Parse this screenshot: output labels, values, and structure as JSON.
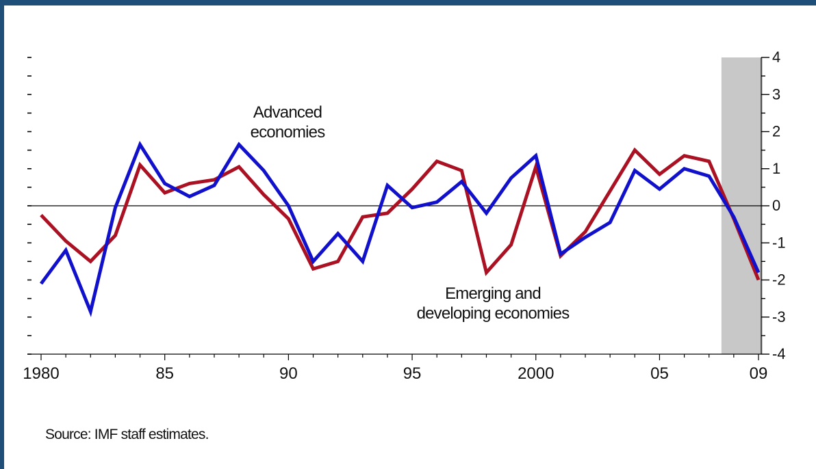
{
  "chart_data": {
    "type": "line",
    "x": [
      1980,
      1981,
      1982,
      1983,
      1984,
      1985,
      1986,
      1987,
      1988,
      1989,
      1990,
      1991,
      1992,
      1993,
      1994,
      1995,
      1996,
      1997,
      1998,
      1999,
      2000,
      2001,
      2002,
      2003,
      2004,
      2005,
      2006,
      2007,
      2008,
      2009
    ],
    "x_tick_values": [
      1980,
      1985,
      1990,
      1995,
      2000,
      2005,
      2009
    ],
    "x_tick_labels": [
      "1980",
      "85",
      "90",
      "95",
      "2000",
      "05",
      "09"
    ],
    "y_ticks": [
      -4,
      -3,
      -2,
      -1,
      0,
      1,
      2,
      3,
      4
    ],
    "ylim": [
      -4,
      4
    ],
    "xlim": [
      1980,
      2009
    ],
    "shaded_region": [
      2008,
      2009
    ],
    "zero_line": true,
    "series": [
      {
        "key": "advanced",
        "color": "#1111cc",
        "values": [
          -2.1,
          -1.2,
          -2.85,
          -0.05,
          1.65,
          0.6,
          0.25,
          0.55,
          1.65,
          0.95,
          0.0,
          -1.5,
          -0.75,
          -1.5,
          0.55,
          -0.05,
          0.1,
          0.65,
          -0.2,
          0.75,
          1.35,
          -1.3,
          -0.85,
          -0.45,
          0.95,
          0.45,
          1.0,
          0.8,
          -0.3,
          -1.8
        ]
      },
      {
        "key": "emerging",
        "color": "#aa1122",
        "values": [
          -0.25,
          -0.95,
          -1.5,
          -0.8,
          1.1,
          0.35,
          0.6,
          0.7,
          1.05,
          0.3,
          -0.35,
          -1.7,
          -1.5,
          -0.3,
          -0.2,
          0.45,
          1.2,
          0.95,
          -1.8,
          -1.05,
          1.05,
          -1.35,
          -0.7,
          0.4,
          1.5,
          0.85,
          1.35,
          1.2,
          -0.35,
          -2.0
        ]
      }
    ],
    "annotations": [
      {
        "key": "adv",
        "lines": [
          "Advanced",
          "economies"
        ]
      },
      {
        "key": "emg",
        "lines": [
          "Emerging and",
          "developing economies"
        ]
      }
    ]
  },
  "source_note": "Source: IMF staff estimates."
}
